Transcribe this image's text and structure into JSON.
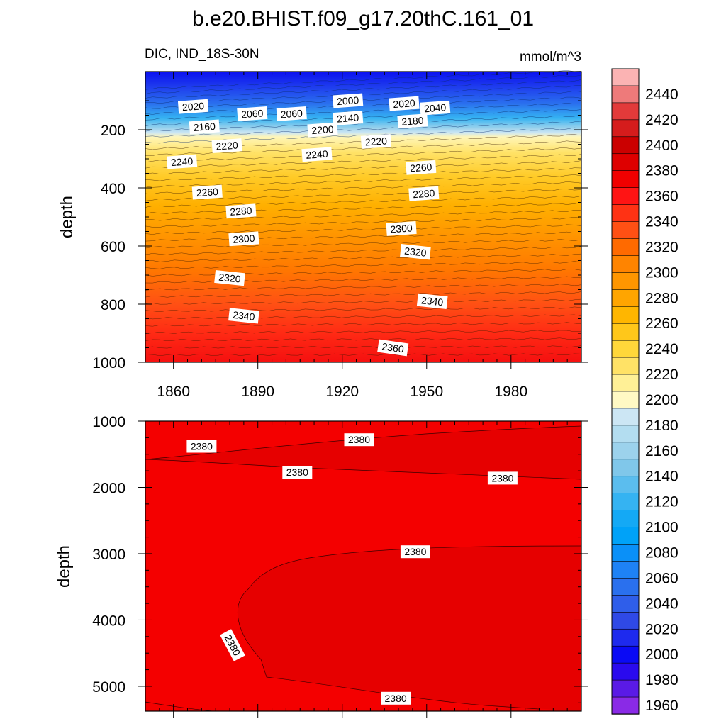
{
  "title": "b.e20.BHIST.f09_g17.20thC.161_01",
  "chart_data": [
    {
      "type": "heatmap",
      "subtype": "filled-contour",
      "panel": "upper",
      "left_label": "DIC, IND_18S-30N",
      "right_label": "mmol/m^3",
      "ylabel": "depth",
      "xlim": [
        1850,
        2005
      ],
      "ylim": [
        0,
        1000
      ],
      "y_reversed": true,
      "x_ticks": [
        "1860",
        "1890",
        "1920",
        "1950",
        "1980"
      ],
      "y_ticks": [
        "200",
        "400",
        "600",
        "800",
        "1000"
      ],
      "contour_labels": [
        {
          "text": "2020",
          "x": 1867,
          "y": 120
        },
        {
          "text": "2060",
          "x": 1888,
          "y": 145
        },
        {
          "text": "2060",
          "x": 1902,
          "y": 145
        },
        {
          "text": "2000",
          "x": 1922,
          "y": 100
        },
        {
          "text": "2020",
          "x": 1942,
          "y": 110
        },
        {
          "text": "2040",
          "x": 1953,
          "y": 125
        },
        {
          "text": "2160",
          "x": 1871,
          "y": 190
        },
        {
          "text": "2140",
          "x": 1922,
          "y": 160
        },
        {
          "text": "2180",
          "x": 1945,
          "y": 170
        },
        {
          "text": "2200",
          "x": 1913,
          "y": 200
        },
        {
          "text": "2220",
          "x": 1879,
          "y": 255
        },
        {
          "text": "2220",
          "x": 1932,
          "y": 240
        },
        {
          "text": "2240",
          "x": 1863,
          "y": 310
        },
        {
          "text": "2240",
          "x": 1911,
          "y": 285
        },
        {
          "text": "2260",
          "x": 1948,
          "y": 330
        },
        {
          "text": "2260",
          "x": 1872,
          "y": 415
        },
        {
          "text": "2280",
          "x": 1949,
          "y": 420
        },
        {
          "text": "2280",
          "x": 1884,
          "y": 480
        },
        {
          "text": "2300",
          "x": 1941,
          "y": 540
        },
        {
          "text": "2300",
          "x": 1885,
          "y": 575
        },
        {
          "text": "2320",
          "x": 1946,
          "y": 620
        },
        {
          "text": "2320",
          "x": 1880,
          "y": 710
        },
        {
          "text": "2340",
          "x": 1952,
          "y": 790
        },
        {
          "text": "2340",
          "x": 1885,
          "y": 840
        },
        {
          "text": "2360",
          "x": 1938,
          "y": 950
        }
      ]
    },
    {
      "type": "heatmap",
      "subtype": "filled-contour",
      "panel": "lower",
      "ylabel": "depth",
      "xlim": [
        1850,
        2005
      ],
      "ylim": [
        1000,
        5375
      ],
      "y_reversed": true,
      "y_ticks": [
        "1000",
        "2000",
        "3000",
        "4000",
        "5000"
      ],
      "contour_labels": [
        {
          "text": "2380",
          "x": 1870,
          "y": 1380
        },
        {
          "text": "2380",
          "x": 1926,
          "y": 1280
        },
        {
          "text": "2380",
          "x": 1904,
          "y": 1770
        },
        {
          "text": "2380",
          "x": 1977,
          "y": 1860
        },
        {
          "text": "2380",
          "x": 1946,
          "y": 2970
        },
        {
          "text": "2380",
          "x": 1881,
          "y": 4380
        },
        {
          "text": "2380",
          "x": 1939,
          "y": 5180
        }
      ]
    }
  ],
  "colorbar": {
    "labels": [
      "2440",
      "2420",
      "2400",
      "2380",
      "2360",
      "2340",
      "2320",
      "2300",
      "2280",
      "2260",
      "2240",
      "2220",
      "2200",
      "2180",
      "2160",
      "2140",
      "2120",
      "2100",
      "2080",
      "2060",
      "2040",
      "2020",
      "2000",
      "1980",
      "1960"
    ],
    "colors_top_to_bottom": [
      "#FBB3B3",
      "#EE7A7A",
      "#E23A3A",
      "#D51C1C",
      "#CB0000",
      "#DE0000",
      "#F00000",
      "#FF1414",
      "#FF3214",
      "#FF5014",
      "#FF6A00",
      "#FF8400",
      "#FF9600",
      "#FFA500",
      "#FFB600",
      "#FFC71A",
      "#FFD73A",
      "#FFE266",
      "#FFF096",
      "#FFF9C4",
      "#CCE6F4",
      "#B3DDF0",
      "#9CD2EC",
      "#80C7EA",
      "#5BBDEE",
      "#35B3F2",
      "#14A9F5",
      "#00A2F8",
      "#0A90F8",
      "#1E82F5",
      "#2A70EE",
      "#2F5EEA",
      "#2F49E6",
      "#1E2AEE",
      "#0A0AF5",
      "#2A0AEE",
      "#5A1AE6",
      "#8A2AE6"
    ]
  }
}
